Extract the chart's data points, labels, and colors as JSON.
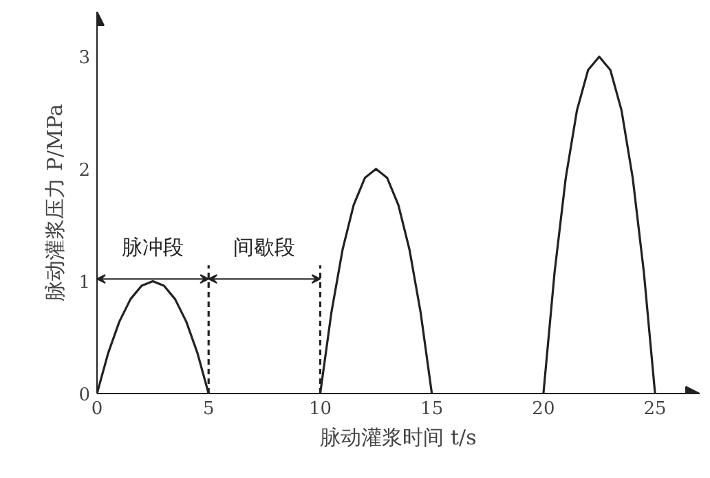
{
  "chart_data": {
    "type": "line",
    "xlabel": "脉动灌浆时间 t/s",
    "ylabel": "脉动灌浆压力 P/MPa",
    "xlim": [
      0,
      27
    ],
    "ylim": [
      0,
      3.4
    ],
    "xticks": [
      0,
      5,
      10,
      15,
      20,
      25
    ],
    "yticks": [
      0,
      1,
      2,
      3
    ],
    "grid": false,
    "marker": "none",
    "line_style": "solid",
    "series": [
      {
        "color": "#222222",
        "x": [
          0,
          0.5,
          1,
          1.5,
          2,
          2.5,
          3,
          3.5,
          4,
          4.5,
          5
        ],
        "values": [
          0,
          0.36,
          0.64,
          0.84,
          0.96,
          1,
          0.96,
          0.84,
          0.64,
          0.36,
          0
        ]
      },
      {
        "color": "#222222",
        "x": [
          10,
          10.5,
          11,
          11.5,
          12,
          12.5,
          13,
          13.5,
          14,
          14.5,
          15
        ],
        "values": [
          0,
          0.72,
          1.28,
          1.68,
          1.92,
          2,
          1.92,
          1.68,
          1.28,
          0.72,
          0
        ]
      },
      {
        "color": "#222222",
        "x": [
          20,
          20.5,
          21,
          21.5,
          22,
          22.5,
          23,
          23.5,
          24,
          24.5,
          25
        ],
        "values": [
          0,
          1.08,
          1.92,
          2.52,
          2.88,
          3,
          2.88,
          2.52,
          1.92,
          1.08,
          0
        ]
      }
    ],
    "ref_lines": [
      {
        "axis": "x",
        "value": 5,
        "line_style": "dashed"
      },
      {
        "axis": "x",
        "value": 10,
        "line_style": "dashed"
      }
    ],
    "annotations": [
      "脉冲段",
      "间歇段"
    ]
  }
}
